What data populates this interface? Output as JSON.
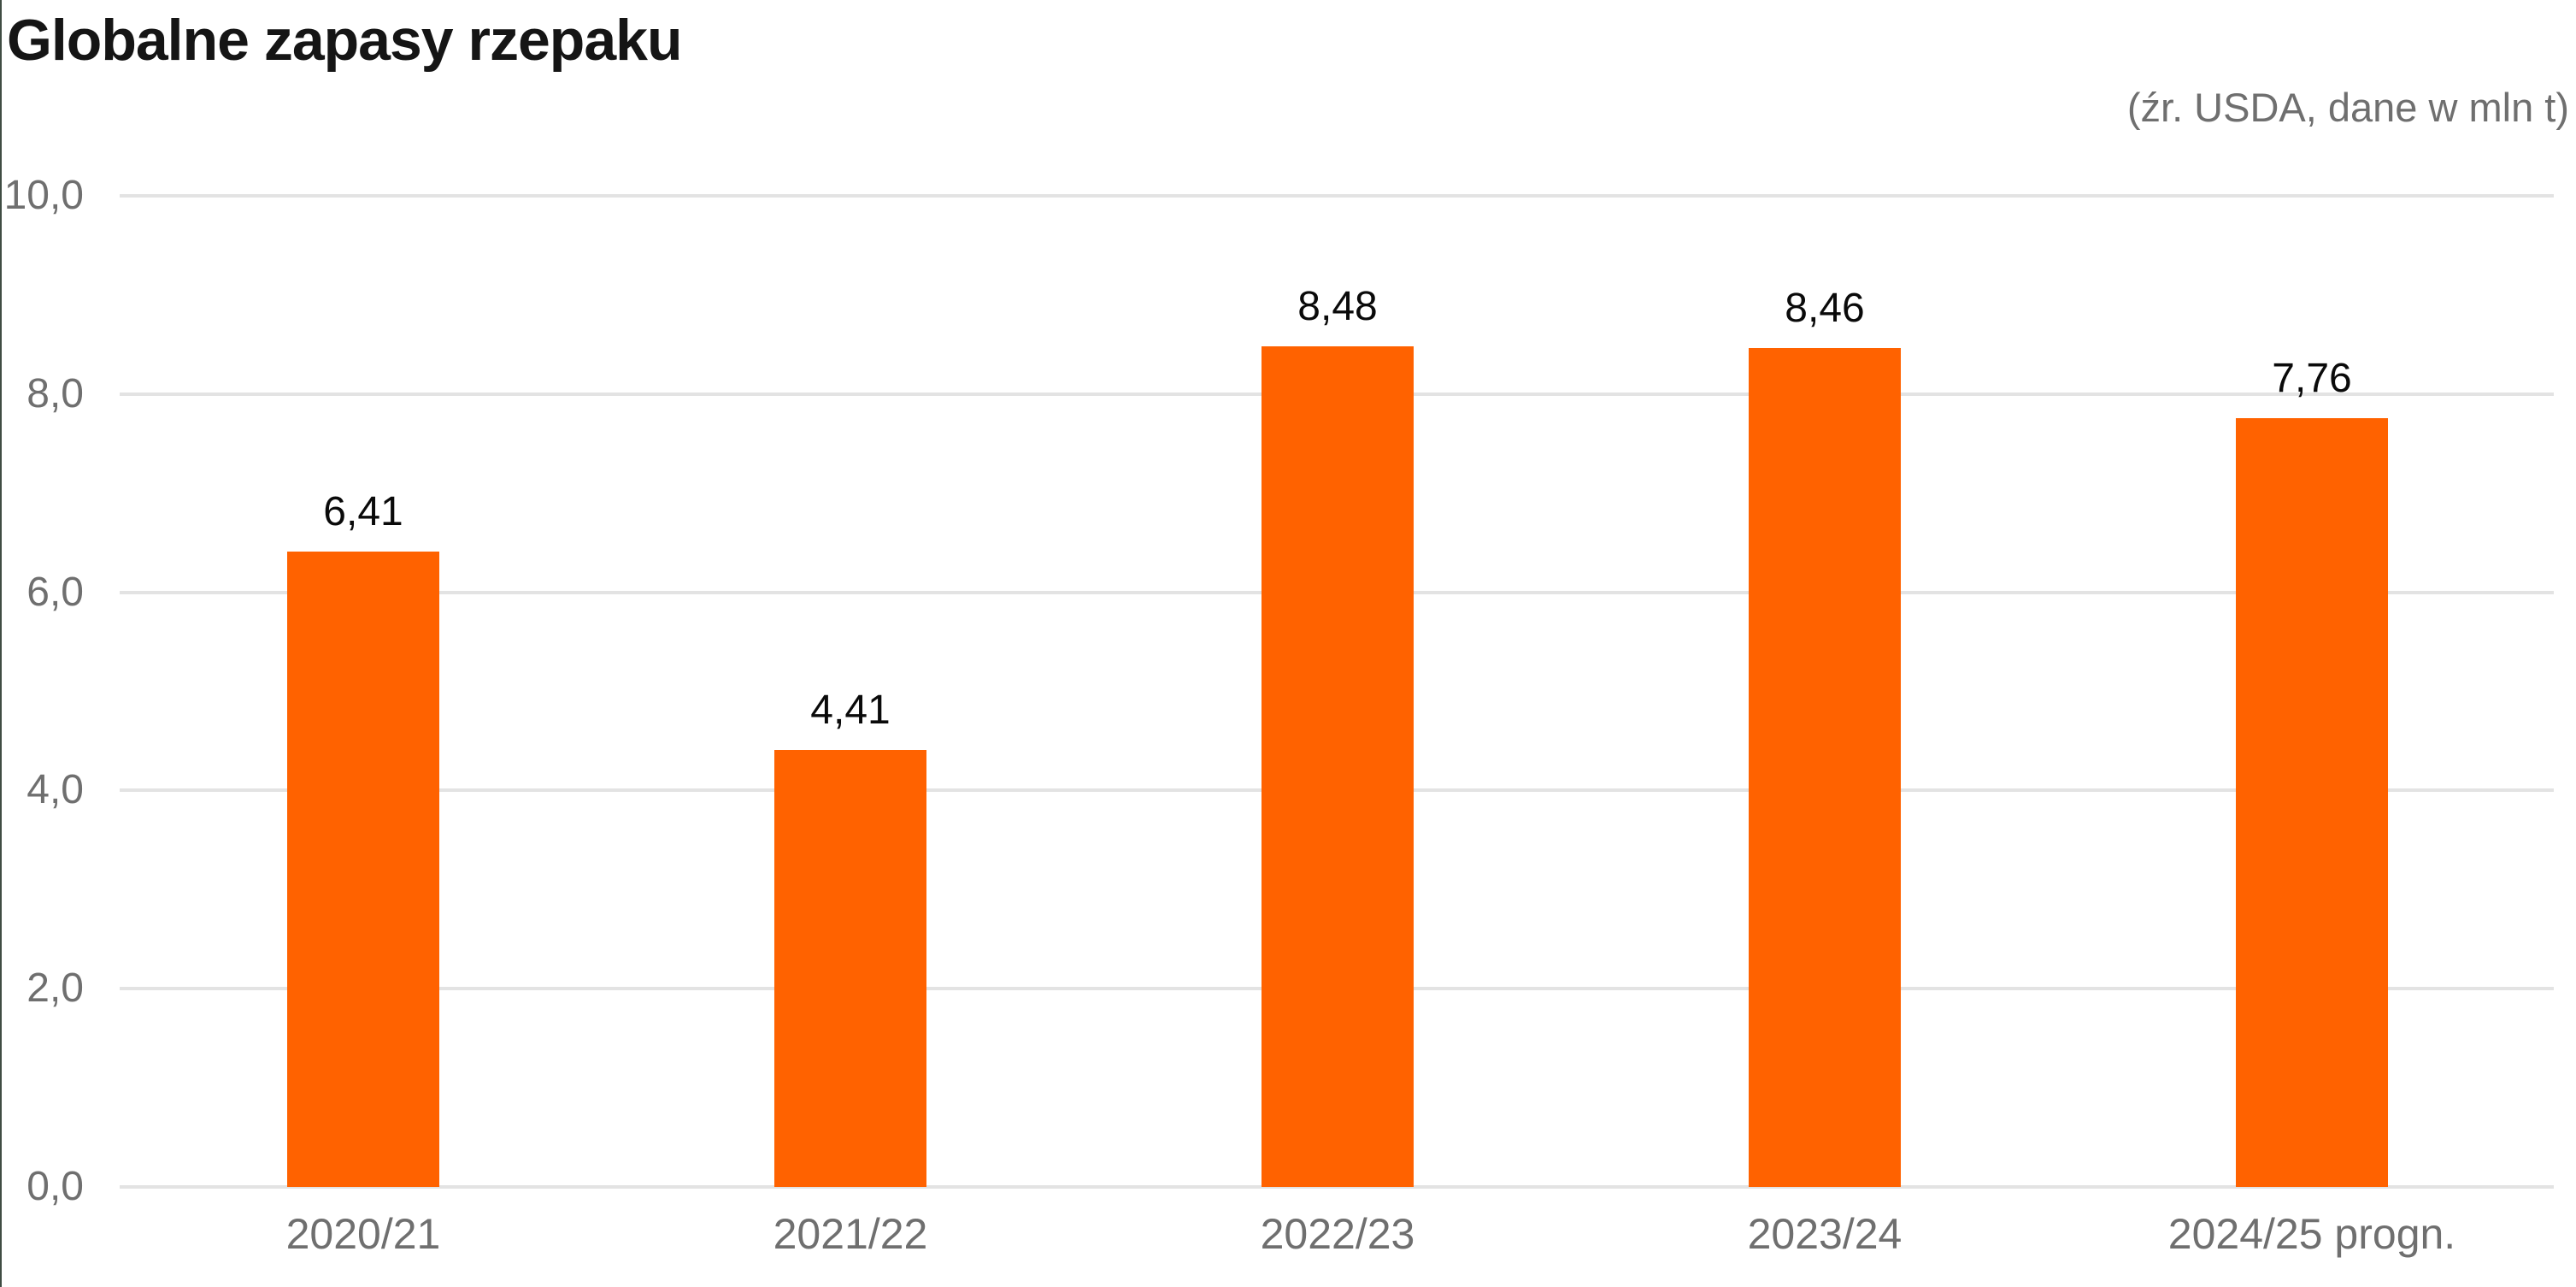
{
  "header": {
    "title": "Globalne zapasy rzepaku",
    "source_note": "(źr. USDA, dane w mln t)"
  },
  "colors": {
    "bar": "#ff6200",
    "gridline": "#e3e3e3",
    "axis_text": "#6f6f6f",
    "value_label": "#0a0a0a",
    "title_text": "#151515",
    "edge_line": "#3f4c43"
  },
  "chart_data": {
    "type": "bar",
    "title": "Globalne zapasy rzepaku",
    "subtitle": "(źr. USDA, dane w mln t)",
    "categories": [
      "2020/21",
      "2021/22",
      "2022/23",
      "2023/24",
      "2024/25 progn."
    ],
    "values": [
      6.41,
      4.41,
      8.48,
      8.46,
      7.76
    ],
    "value_labels": [
      "6,41",
      "4,41",
      "8,48",
      "8,46",
      "7,76"
    ],
    "xlabel": "",
    "ylabel": "",
    "ylim": [
      0,
      10
    ],
    "yticks": [
      {
        "value": 0,
        "label": "0,0"
      },
      {
        "value": 2,
        "label": "2,0"
      },
      {
        "value": 4,
        "label": "4,0"
      },
      {
        "value": 6,
        "label": "6,0"
      },
      {
        "value": 8,
        "label": "8,0"
      },
      {
        "value": 10,
        "label": "10,0"
      }
    ],
    "grid": "horizontal",
    "legend": false,
    "bar_color": "#ff6200"
  }
}
